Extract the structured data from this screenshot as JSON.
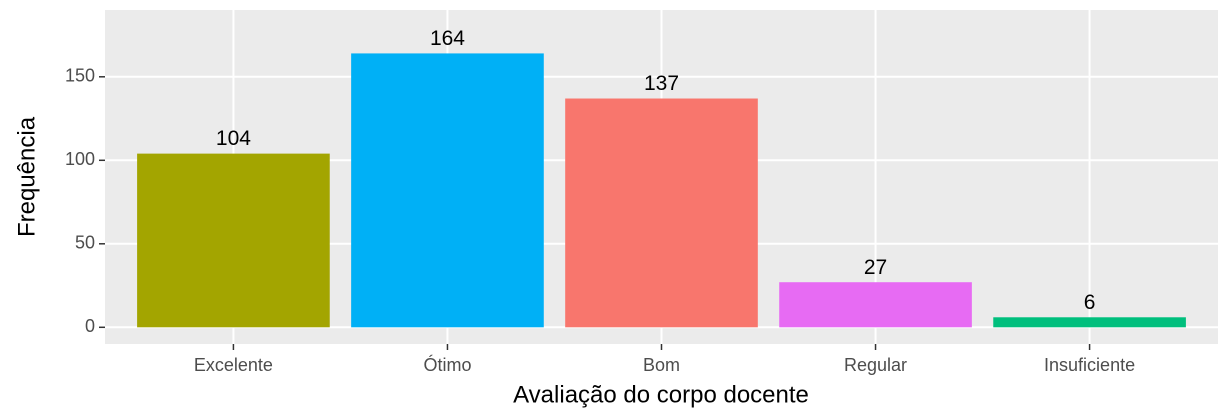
{
  "chart_data": {
    "type": "bar",
    "x_label": "Avaliação do corpo docente",
    "y_label": "Frequência",
    "categories": [
      "Excelente",
      "Ótimo",
      "Bom",
      "Regular",
      "Insuficiente"
    ],
    "values": [
      104,
      164,
      137,
      27,
      6
    ],
    "colors": [
      "#A3A500",
      "#00B0F6",
      "#F8766D",
      "#E76BF3",
      "#00BF7D"
    ],
    "ylim": [
      -10,
      190
    ],
    "yticks": [
      0,
      50,
      100,
      150
    ],
    "grid": true
  }
}
